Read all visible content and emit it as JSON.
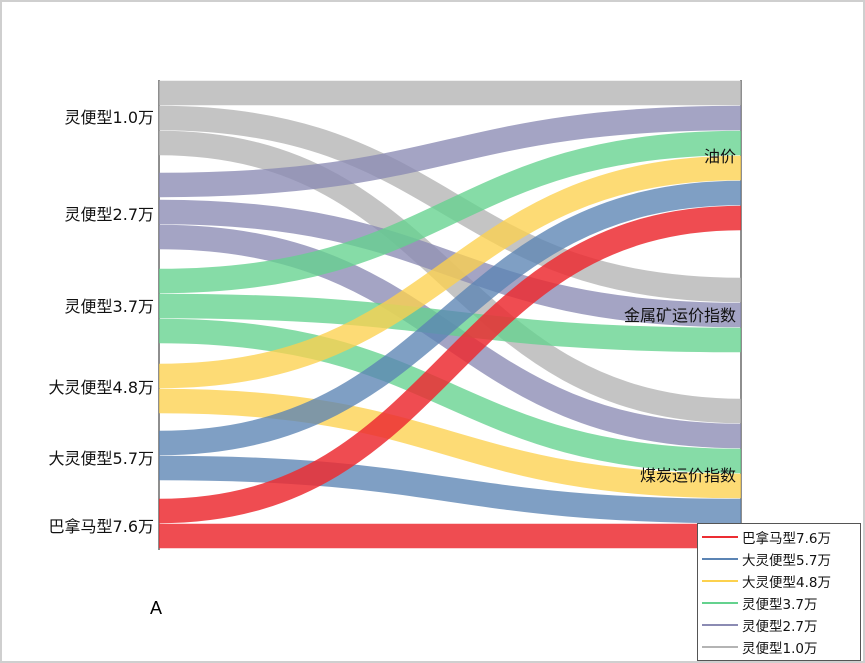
{
  "chart_data": {
    "type": "sankey",
    "panel_label": "A",
    "sources": [
      "灵便型1.0万",
      "灵便型2.7万",
      "灵便型3.7万",
      "大灵便型4.8万",
      "大灵便型5.7万",
      "巴拿马型7.6万"
    ],
    "targets": [
      "油价",
      "金属矿运价指数",
      "煤炭运价指数"
    ],
    "colors": {
      "灵便型1.0万": "#b4b4b4",
      "灵便型2.7万": "#8b8bb3",
      "灵便型3.7万": "#64d28e",
      "大灵便型4.8万": "#fcd14e",
      "大灵便型5.7万": "#5b84b4",
      "巴拿马型7.6万": "#ec2d32"
    },
    "links": [
      {
        "source": "灵便型1.0万",
        "target": "油价",
        "value": 1
      },
      {
        "source": "灵便型1.0万",
        "target": "金属矿运价指数",
        "value": 1
      },
      {
        "source": "灵便型1.0万",
        "target": "煤炭运价指数",
        "value": 1
      },
      {
        "source": "灵便型2.7万",
        "target": "油价",
        "value": 1
      },
      {
        "source": "灵便型2.7万",
        "target": "金属矿运价指数",
        "value": 1
      },
      {
        "source": "灵便型2.7万",
        "target": "煤炭运价指数",
        "value": 1
      },
      {
        "source": "灵便型3.7万",
        "target": "油价",
        "value": 1
      },
      {
        "source": "灵便型3.7万",
        "target": "金属矿运价指数",
        "value": 1
      },
      {
        "source": "灵便型3.7万",
        "target": "煤炭运价指数",
        "value": 1
      },
      {
        "source": "大灵便型4.8万",
        "target": "油价",
        "value": 1
      },
      {
        "source": "大灵便型4.8万",
        "target": "煤炭运价指数",
        "value": 1
      },
      {
        "source": "大灵便型5.7万",
        "target": "油价",
        "value": 1
      },
      {
        "source": "大灵便型5.7万",
        "target": "煤炭运价指数",
        "value": 1
      },
      {
        "source": "巴拿马型7.6万",
        "target": "油价",
        "value": 1
      },
      {
        "source": "巴拿马型7.6万",
        "target": "煤炭运价指数",
        "value": 1
      }
    ],
    "legend": [
      "巴拿马型7.6万",
      "大灵便型5.7万",
      "大灵便型4.8万",
      "灵便型3.7万",
      "灵便型2.7万",
      "灵便型1.0万"
    ],
    "legend_position": "bottom-right"
  }
}
